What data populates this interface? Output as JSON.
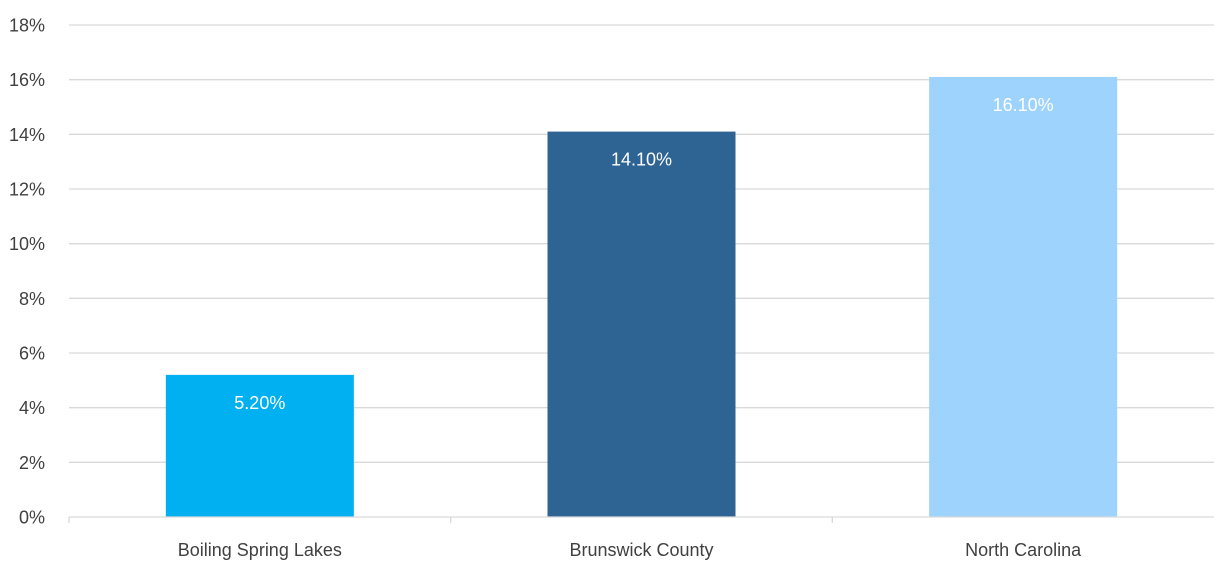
{
  "chart_data": {
    "type": "bar",
    "title": "",
    "xlabel": "",
    "ylabel": "",
    "categories": [
      "Boiling Spring Lakes",
      "Brunswick County",
      "North Carolina"
    ],
    "values": [
      5.2,
      14.1,
      16.1
    ],
    "data_labels": [
      "5.20%",
      "14.10%",
      "16.10%"
    ],
    "bar_colors": [
      "#00b0f0",
      "#2e6494",
      "#9dd3fc"
    ],
    "ylim": [
      0,
      18
    ],
    "yticks": [
      0,
      2,
      4,
      6,
      8,
      10,
      12,
      14,
      16,
      18
    ],
    "ytick_labels": [
      "0%",
      "2%",
      "4%",
      "6%",
      "8%",
      "10%",
      "12%",
      "14%",
      "16%",
      "18%"
    ],
    "grid": true,
    "legend": "none"
  }
}
